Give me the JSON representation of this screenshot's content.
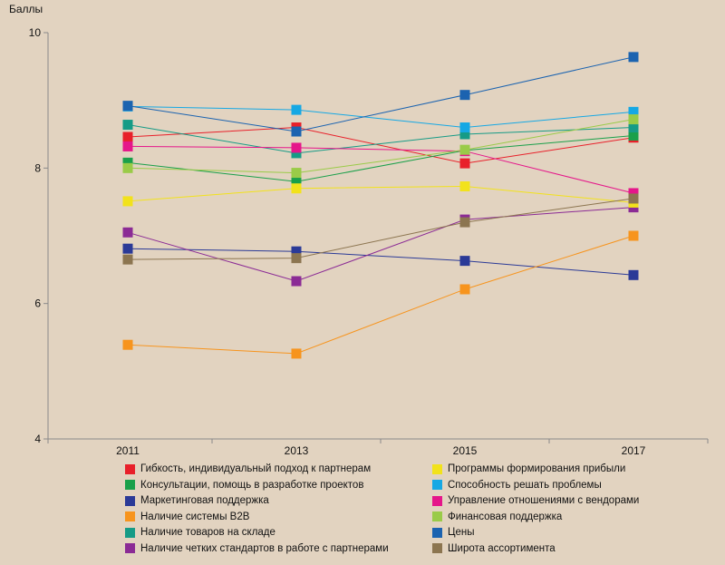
{
  "chart_data": {
    "type": "line",
    "ylabel": "Баллы",
    "xlabel": "",
    "x": [
      "2011",
      "2013",
      "2015",
      "2017"
    ],
    "ylim": [
      4,
      10
    ],
    "yticks": [
      "4",
      "6",
      "8",
      "10"
    ],
    "grid": false,
    "legend_position": "bottom",
    "series": [
      {
        "name": "Гибкость, индивидуальный подход к партнерам",
        "color": "#e8202a",
        "values": [
          8.46,
          8.6,
          8.07,
          8.45
        ]
      },
      {
        "name": "Консультации, помощь в разработке проектов",
        "color": "#1aa04a",
        "values": [
          8.08,
          7.8,
          8.26,
          8.48
        ]
      },
      {
        "name": "Маркетинговая поддержка",
        "color": "#2b3a97",
        "values": [
          6.81,
          6.77,
          6.63,
          6.42
        ]
      },
      {
        "name": "Наличие системы B2B",
        "color": "#f7941d",
        "values": [
          5.39,
          5.26,
          6.21,
          7.0
        ]
      },
      {
        "name": "Наличие товаров на складе",
        "color": "#169b86",
        "values": [
          8.64,
          8.22,
          8.5,
          8.6
        ]
      },
      {
        "name": "Наличие четких стандартов в работе с партнерами",
        "color": "#8b2b95",
        "values": [
          7.05,
          6.33,
          7.24,
          7.42
        ]
      },
      {
        "name": "Программы формирования прибыли",
        "color": "#f2e21b",
        "values": [
          7.51,
          7.7,
          7.73,
          7.49
        ]
      },
      {
        "name": "Способность решать проблемы",
        "color": "#16a8e4",
        "values": [
          8.91,
          8.86,
          8.6,
          8.83
        ]
      },
      {
        "name": "Управление отношениями с вендорами",
        "color": "#e5168a",
        "values": [
          8.32,
          8.3,
          8.25,
          7.63
        ]
      },
      {
        "name": "Финансовая поддержка",
        "color": "#9acb48",
        "values": [
          8.0,
          7.93,
          8.27,
          8.72
        ]
      },
      {
        "name": "Цены",
        "color": "#1b63b0",
        "values": [
          8.92,
          8.54,
          9.08,
          9.64
        ]
      },
      {
        "name": "Широта ассортимента",
        "color": "#8c7550",
        "values": [
          6.65,
          6.67,
          7.2,
          7.55
        ]
      }
    ]
  }
}
